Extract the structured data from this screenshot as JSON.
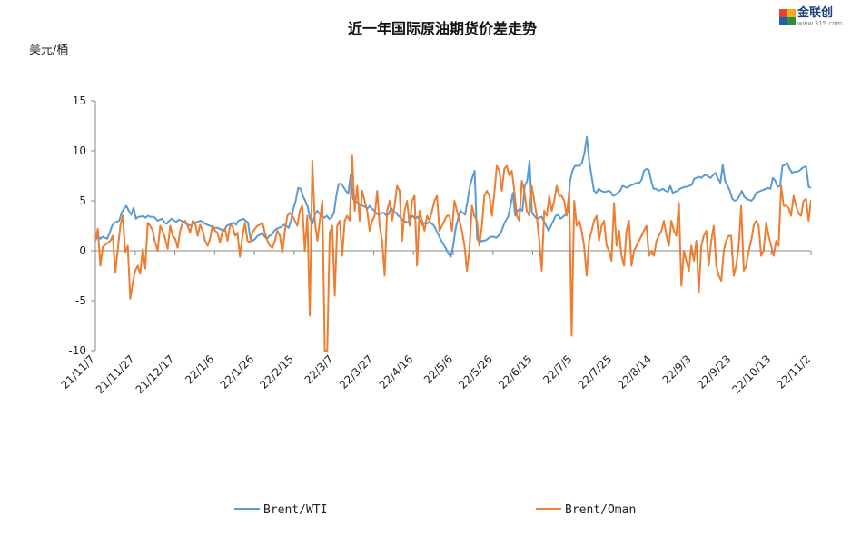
{
  "logo": {
    "name": "金联创",
    "sub": "www.315.com"
  },
  "chart_data": {
    "type": "line",
    "title": "近一年国际原油期货价差走势",
    "ylabel": "美元/桶",
    "ylim": [
      -10,
      15
    ],
    "yticks": [
      15,
      10,
      5,
      0,
      -5,
      -10
    ],
    "xticks": [
      "21/11/7",
      "21/11/27",
      "21/12/17",
      "22/1/6",
      "22/1/26",
      "22/2/15",
      "22/3/7",
      "22/3/27",
      "22/4/16",
      "22/5/6",
      "22/5/26",
      "22/6/15",
      "22/7/5",
      "22/7/25",
      "22/8/14",
      "22/9/3",
      "22/9/23",
      "22/10/13",
      "22/11/2"
    ],
    "x_start": "21/11/7",
    "x_end": "22/11/5",
    "grid": false,
    "legend_position": "bottom",
    "series": [
      {
        "name": "Brent/WTI",
        "color": "#5b9bd5",
        "values": [
          1.0,
          1.5,
          1.2,
          1.4,
          1.3,
          1.2,
          1.8,
          2.5,
          2.8,
          2.9,
          3.0,
          3.8,
          4.2,
          4.5,
          4.0,
          3.6,
          4.3,
          3.2,
          3.4,
          3.4,
          3.5,
          3.3,
          3.5,
          3.4,
          3.4,
          3.3,
          3.0,
          3.1,
          3.2,
          2.8,
          2.7,
          3.0,
          3.2,
          3.0,
          2.9,
          3.1,
          3.0,
          2.9,
          2.7,
          2.6,
          2.5,
          2.7,
          2.8,
          2.9,
          3.0,
          2.9,
          2.7,
          2.6,
          2.5,
          2.4,
          2.3,
          2.3,
          2.2,
          2.1,
          2.0,
          2.5,
          2.6,
          2.7,
          2.8,
          2.6,
          3.0,
          3.1,
          3.2,
          3.0,
          2.8,
          1.2,
          1.0,
          1.2,
          1.5,
          1.6,
          1.8,
          1.4,
          1.2,
          1.5,
          1.6,
          2.0,
          2.2,
          2.3,
          2.4,
          2.6,
          2.5,
          2.3,
          3.0,
          4.2,
          5.0,
          6.3,
          6.2,
          5.5,
          5.0,
          4.4,
          3.2,
          2.7,
          3.6,
          4.0,
          3.7,
          3.4,
          3.3,
          3.5,
          3.2,
          3.3,
          3.8,
          5.5,
          6.7,
          6.7,
          6.4,
          6.0,
          5.7,
          7.6,
          5.2,
          5.0,
          4.8,
          4.6,
          4.5,
          4.4,
          4.2,
          4.5,
          4.2,
          4.0,
          3.7,
          3.6,
          3.8,
          3.8,
          3.5,
          3.7,
          4.3,
          3.9,
          3.8,
          3.5,
          3.3,
          3.0,
          2.9,
          2.8,
          3.2,
          3.5,
          3.2,
          3.4,
          3.0,
          2.6,
          2.8,
          2.7,
          2.9,
          2.7,
          2.5,
          2.0,
          1.5,
          1.0,
          0.6,
          0.2,
          -0.3,
          -0.6,
          0.5,
          2.2,
          3.2,
          4.0,
          3.8,
          3.6,
          5.0,
          6.5,
          7.3,
          8.0,
          1.2,
          0.8,
          1.0,
          1.0,
          1.1,
          1.3,
          1.4,
          1.4,
          1.3,
          1.5,
          1.8,
          2.5,
          3.0,
          3.4,
          4.5,
          5.8,
          3.5,
          4.0,
          4.2,
          4.0,
          6.5,
          7.0,
          9.0,
          3.8,
          3.5,
          3.2,
          3.3,
          3.4,
          3.0,
          2.5,
          2.0,
          2.5,
          3.0,
          3.5,
          3.6,
          3.2,
          3.4,
          3.6,
          3.8,
          7.0,
          8.0,
          8.5,
          8.5,
          8.5,
          8.8,
          9.8,
          11.4,
          9.0,
          7.5,
          6.0,
          5.8,
          6.2,
          6.0,
          5.9,
          5.9,
          6.0,
          5.9,
          5.5,
          5.6,
          5.8,
          6.0,
          6.5,
          6.4,
          6.3,
          6.5,
          6.6,
          6.7,
          6.8,
          6.8,
          7.1,
          8.0,
          8.2,
          8.1,
          7.0,
          6.2,
          6.2,
          6.0,
          6.1,
          6.2,
          6.0,
          5.9,
          6.5,
          5.8,
          5.9,
          6.0,
          6.2,
          6.3,
          6.4,
          6.4,
          6.5,
          6.6,
          7.2,
          7.3,
          7.4,
          7.3,
          7.5,
          7.6,
          7.4,
          7.3,
          7.6,
          7.8,
          7.2,
          6.8,
          8.6,
          7.0,
          6.5,
          6.0,
          5.2,
          5.0,
          5.1,
          5.5,
          6.0,
          5.4,
          5.2,
          5.1,
          5.0,
          5.3,
          5.8,
          5.9,
          6.0,
          6.1,
          6.2,
          6.3,
          6.2,
          7.3,
          7.0,
          6.4,
          6.5,
          8.5,
          8.6,
          8.8,
          8.2,
          7.8,
          7.9,
          7.9,
          8.0,
          8.2,
          8.4,
          8.4,
          6.4,
          6.3
        ]
      },
      {
        "name": "Brent/Oman",
        "color": "#ed7d31",
        "values": [
          1.0,
          2.2,
          -1.5,
          0.4,
          0.6,
          0.8,
          1.0,
          1.5,
          -2.2,
          0.2,
          2.5,
          3.5,
          -0.2,
          0.5,
          -4.8,
          -3.2,
          -2.0,
          -1.5,
          -2.3,
          0.2,
          -1.8,
          2.8,
          2.5,
          2.0,
          0.8,
          0.0,
          2.5,
          2.0,
          1.2,
          0.2,
          2.5,
          1.5,
          1.2,
          0.3,
          2.0,
          2.8,
          3.0,
          2.5,
          1.8,
          3.0,
          2.8,
          1.5,
          2.6,
          2.0,
          1.0,
          0.5,
          1.2,
          2.5,
          2.0,
          1.8,
          0.8,
          2.0,
          2.2,
          1.0,
          2.5,
          2.5,
          1.5,
          1.8,
          -0.6,
          1.5,
          2.8,
          1.0,
          0.8,
          1.8,
          2.2,
          2.5,
          2.6,
          2.8,
          1.8,
          1.0,
          0.5,
          0.3,
          1.0,
          2.0,
          1.5,
          -0.2,
          2.0,
          3.5,
          3.8,
          3.5,
          3.0,
          2.5,
          4.0,
          4.5,
          0.0,
          3.5,
          -6.5,
          9.0,
          3.0,
          1.0,
          3.0,
          5.0,
          -10.0,
          -10.0,
          1.8,
          2.5,
          -4.5,
          2.5,
          3.0,
          -0.5,
          3.0,
          3.5,
          3.0,
          9.5,
          4.0,
          6.5,
          3.0,
          6.0,
          5.0,
          4.0,
          2.0,
          3.0,
          3.5,
          6.0,
          2.5,
          1.0,
          -2.5,
          4.0,
          5.0,
          3.0,
          4.5,
          6.5,
          6.0,
          1.0,
          4.0,
          5.0,
          2.5,
          5.0,
          5.5,
          -1.5,
          4.0,
          3.0,
          2.0,
          3.5,
          3.0,
          4.0,
          5.0,
          5.5,
          2.0,
          2.5,
          3.0,
          3.5,
          3.5,
          2.0,
          5.0,
          4.0,
          3.0,
          2.0,
          0.5,
          -2.0,
          0.0,
          4.5,
          3.5,
          3.0,
          0.5,
          2.5,
          5.5,
          6.0,
          5.5,
          3.5,
          5.8,
          8.5,
          8.0,
          6.0,
          8.2,
          8.5,
          7.5,
          8.0,
          6.0,
          3.5,
          3.0,
          7.0,
          6.0,
          4.0,
          3.5,
          6.5,
          5.0,
          3.5,
          1.0,
          -2.0,
          4.0,
          3.5,
          5.5,
          4.0,
          5.0,
          6.5,
          5.5,
          5.5,
          5.0,
          3.5,
          6.0,
          -8.5,
          5.0,
          2.5,
          3.0,
          2.0,
          0.5,
          -2.5,
          1.0,
          2.0,
          3.0,
          3.5,
          1.0,
          2.5,
          3.0,
          0.5,
          0.0,
          -1.0,
          4.8,
          0.5,
          2.0,
          -0.5,
          -1.5,
          2.0,
          3.0,
          -1.5,
          0.0,
          0.5,
          1.0,
          1.5,
          2.0,
          2.5,
          -0.5,
          0.0,
          -0.5,
          1.0,
          1.5,
          2.0,
          3.0,
          1.5,
          0.5,
          3.0,
          2.0,
          1.5,
          4.8,
          -3.5,
          0.0,
          -1.0,
          -2.0,
          0.5,
          -1.0,
          1.0,
          -4.2,
          0.5,
          1.5,
          2.0,
          -1.5,
          1.0,
          2.5,
          -1.5,
          -2.5,
          -3.0,
          0.0,
          1.0,
          1.5,
          1.5,
          -2.5,
          -1.5,
          0.5,
          4.5,
          -2.0,
          -1.5,
          0.0,
          1.0,
          2.5,
          3.0,
          2.5,
          -0.5,
          0.0,
          2.8,
          1.5,
          0.5,
          -0.5,
          1.0,
          0.5,
          6.5,
          4.5,
          4.5,
          4.3,
          3.5,
          5.5,
          4.5,
          3.7,
          3.5,
          5.0,
          5.2,
          3.0,
          5.1
        ]
      }
    ]
  }
}
